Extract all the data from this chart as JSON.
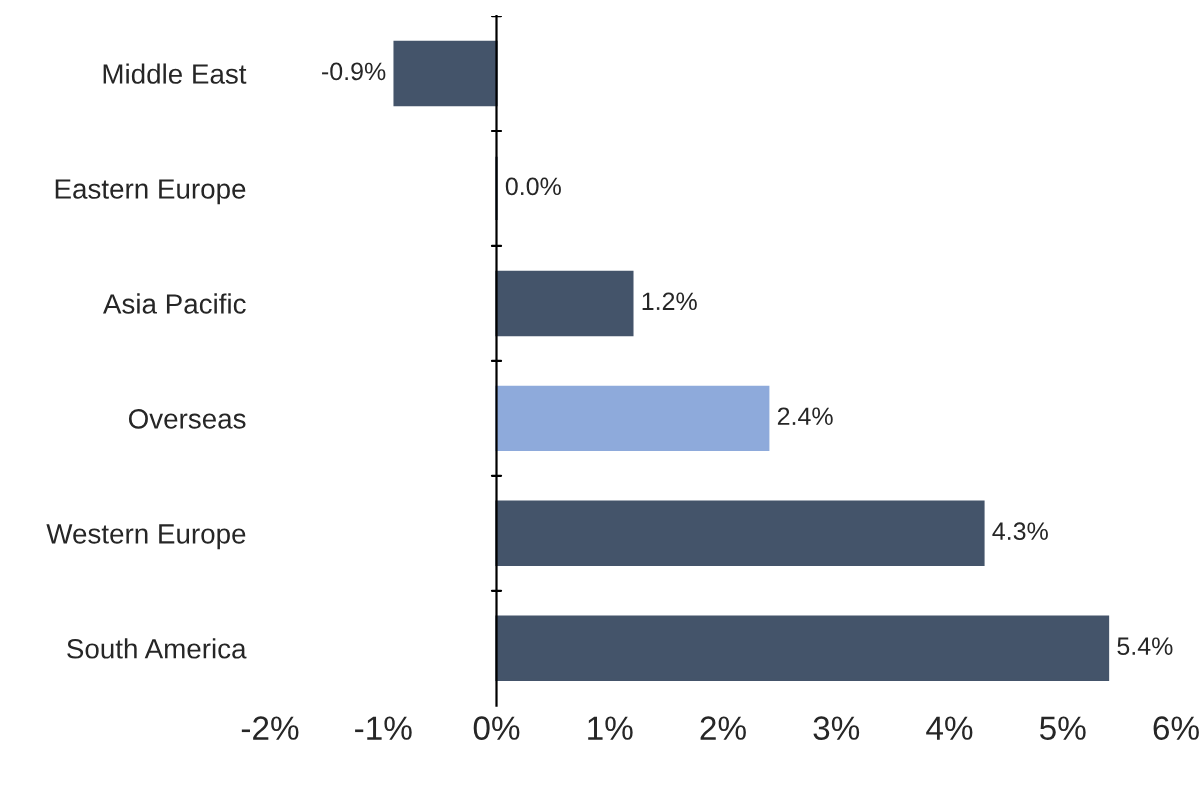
{
  "chart_data": {
    "type": "bar",
    "orientation": "horizontal",
    "categories": [
      "Middle East",
      "Eastern Europe",
      "Asia Pacific",
      "Overseas",
      "Western Europe",
      "South America"
    ],
    "values": [
      -0.9,
      0.0,
      1.2,
      2.4,
      4.3,
      5.4
    ],
    "colors": [
      "#44546a",
      "#44546a",
      "#44546a",
      "#8eaadb",
      "#44546a",
      "#44546a"
    ],
    "value_labels": [
      "-0.9%",
      "0.0%",
      "1.2%",
      "2.4%",
      "4.3%",
      "5.4%"
    ],
    "xlim": [
      -2,
      6
    ],
    "xticks": [
      {
        "value": -2,
        "label": "-2%"
      },
      {
        "value": -1,
        "label": "-1%"
      },
      {
        "value": 0,
        "label": "0%"
      },
      {
        "value": 1,
        "label": "1%"
      },
      {
        "value": 2,
        "label": "2%"
      },
      {
        "value": 3,
        "label": "3%"
      },
      {
        "value": 4,
        "label": "4%"
      },
      {
        "value": 5,
        "label": "5%"
      },
      {
        "value": 6,
        "label": "6%"
      }
    ],
    "legend": false
  }
}
